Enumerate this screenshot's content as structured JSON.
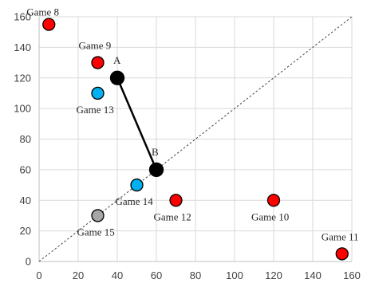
{
  "chart_data": {
    "type": "scatter",
    "xlim": [
      0,
      160
    ],
    "ylim": [
      0,
      160
    ],
    "xticks": [
      0,
      20,
      40,
      60,
      80,
      100,
      120,
      140,
      160
    ],
    "yticks": [
      0,
      20,
      40,
      60,
      80,
      100,
      120,
      140,
      160
    ],
    "grid": true,
    "diagonal": true,
    "colors": {
      "red": "#ff0000",
      "blue": "#00b0f0",
      "black": "#000000",
      "gray": "#a6a6a6",
      "grid": "#d9d9d9",
      "axis": "#bfbfbf"
    },
    "points": [
      {
        "label": "Game 8",
        "x": 5,
        "y": 155,
        "color": "red"
      },
      {
        "label": "Game 9",
        "x": 30,
        "y": 130,
        "color": "red"
      },
      {
        "label": "Game 13",
        "x": 30,
        "y": 110,
        "color": "blue"
      },
      {
        "label": "A",
        "x": 40,
        "y": 120,
        "color": "black"
      },
      {
        "label": "B",
        "x": 60,
        "y": 60,
        "color": "black"
      },
      {
        "label": "Game 14",
        "x": 50,
        "y": 50,
        "color": "blue"
      },
      {
        "label": "Game 12",
        "x": 70,
        "y": 40,
        "color": "red"
      },
      {
        "label": "Game 10",
        "x": 120,
        "y": 40,
        "color": "red"
      },
      {
        "label": "Game 15",
        "x": 30,
        "y": 30,
        "color": "gray"
      },
      {
        "label": "Game 11",
        "x": 155,
        "y": 5,
        "color": "red"
      }
    ],
    "segments": [
      {
        "from": "A",
        "to": "B"
      }
    ]
  }
}
